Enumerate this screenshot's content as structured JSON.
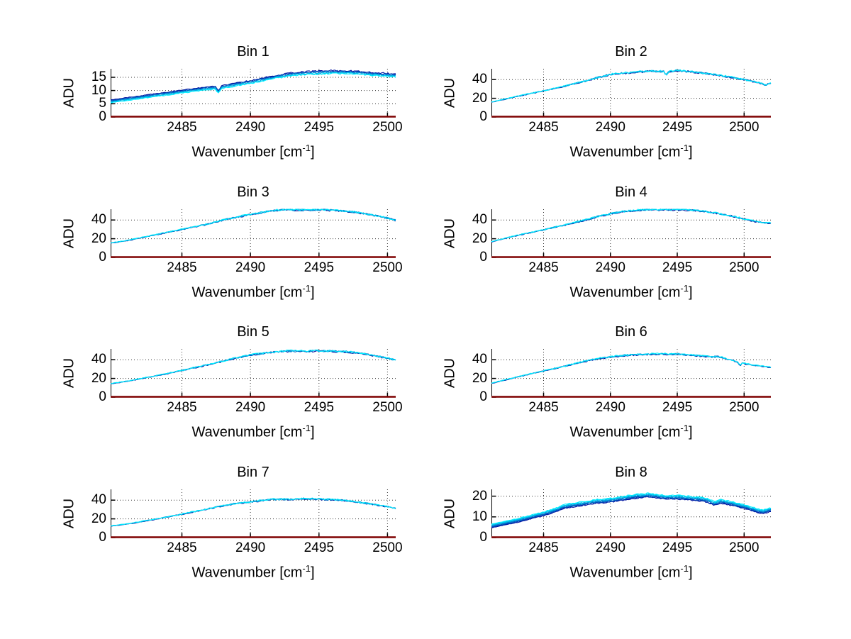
{
  "figure": {
    "background": "#ffffff"
  },
  "palette": {
    "trace_dark": "#000f9f",
    "trace_cyan": "#00eeff",
    "baseline": "#7f0000",
    "grid": "#333333",
    "axis": "#000000",
    "text": "#000000"
  },
  "chart_data": [
    {
      "type": "line",
      "title": "Bin 1",
      "ylabel": "ADU",
      "xlabel": {
        "pre": "Wavenumber [cm",
        "sup": "-1",
        "post": "]"
      },
      "xlim": [
        2479.8,
        2500.6
      ],
      "ylim": [
        0,
        18.2
      ],
      "x_ticks": [
        2485,
        2490,
        2495,
        2500
      ],
      "y_ticks": [
        0,
        5,
        10,
        15
      ],
      "grid": true,
      "legend": null,
      "traces": 6,
      "spread": 1.1,
      "noise": 0.3,
      "cyan_on_top": false,
      "baseline_y": 0,
      "points": [
        [
          2479.6,
          5.8
        ],
        [
          2481,
          6.8
        ],
        [
          2483,
          8.2
        ],
        [
          2485,
          9.6
        ],
        [
          2486,
          10.3
        ],
        [
          2487,
          10.9
        ],
        [
          2487.45,
          11.1
        ],
        [
          2487.65,
          9.4
        ],
        [
          2487.9,
          11.3
        ],
        [
          2489,
          12.3
        ],
        [
          2490,
          13.2
        ],
        [
          2491,
          14.3
        ],
        [
          2492,
          15.3
        ],
        [
          2493,
          16.1
        ],
        [
          2494,
          16.5
        ],
        [
          2495,
          16.8
        ],
        [
          2496,
          17.0
        ],
        [
          2497,
          16.9
        ],
        [
          2498,
          16.6
        ],
        [
          2499,
          16.2
        ],
        [
          2500,
          15.9
        ],
        [
          2501,
          15.6
        ],
        [
          2501.6,
          16.0
        ]
      ]
    },
    {
      "type": "line",
      "title": "Bin 2",
      "ylabel": "ADU",
      "xlabel": {
        "pre": "Wavenumber [cm",
        "sup": "-1",
        "post": "]"
      },
      "xlim": [
        2481.1,
        2502.0
      ],
      "ylim": [
        0,
        51.5
      ],
      "x_ticks": [
        2485,
        2490,
        2495,
        2500
      ],
      "y_ticks": [
        0,
        20,
        40
      ],
      "grid": true,
      "legend": null,
      "traces": 4,
      "spread": 0.4,
      "noise": 1.0,
      "cyan_on_top": true,
      "baseline_y": 0,
      "points": [
        [
          2479.6,
          13
        ],
        [
          2481,
          15.5
        ],
        [
          2483,
          22
        ],
        [
          2485,
          28
        ],
        [
          2486,
          31
        ],
        [
          2487,
          34.5
        ],
        [
          2488,
          38
        ],
        [
          2489,
          42
        ],
        [
          2490,
          45.5
        ],
        [
          2491,
          47
        ],
        [
          2492,
          48
        ],
        [
          2493,
          49
        ],
        [
          2494,
          48.5
        ],
        [
          2494.15,
          44
        ],
        [
          2494.35,
          48.5
        ],
        [
          2495,
          49.5
        ],
        [
          2496,
          48.5
        ],
        [
          2497,
          47
        ],
        [
          2498,
          45
        ],
        [
          2499,
          42.5
        ],
        [
          2500,
          40
        ],
        [
          2501,
          37
        ],
        [
          2501.4,
          35.5
        ],
        [
          2501.6,
          33.5
        ],
        [
          2501.8,
          35.5
        ],
        [
          2502,
          36
        ]
      ]
    },
    {
      "type": "line",
      "title": "Bin 3",
      "ylabel": "ADU",
      "xlabel": {
        "pre": "Wavenumber [cm",
        "sup": "-1",
        "post": "]"
      },
      "xlim": [
        2479.8,
        2500.6
      ],
      "ylim": [
        0,
        51.5
      ],
      "x_ticks": [
        2485,
        2490,
        2495,
        2500
      ],
      "y_ticks": [
        0,
        20,
        40
      ],
      "grid": true,
      "legend": null,
      "traces": 4,
      "spread": 0.4,
      "noise": 1.0,
      "cyan_on_top": true,
      "baseline_y": 0,
      "points": [
        [
          2479.6,
          15
        ],
        [
          2481,
          18
        ],
        [
          2483,
          24
        ],
        [
          2485,
          30
        ],
        [
          2487,
          36
        ],
        [
          2488,
          40
        ],
        [
          2489,
          43
        ],
        [
          2490,
          46
        ],
        [
          2491,
          48.5
        ],
        [
          2492,
          50.5
        ],
        [
          2493,
          51
        ],
        [
          2494,
          50.5
        ],
        [
          2495,
          51
        ],
        [
          2496,
          50.5
        ],
        [
          2497,
          49.5
        ],
        [
          2498,
          47.5
        ],
        [
          2499,
          45
        ],
        [
          2500,
          42
        ],
        [
          2501,
          38.5
        ],
        [
          2501.6,
          37
        ]
      ]
    },
    {
      "type": "line",
      "title": "Bin 4",
      "ylabel": "ADU",
      "xlabel": {
        "pre": "Wavenumber [cm",
        "sup": "-1",
        "post": "]"
      },
      "xlim": [
        2481.1,
        2502.0
      ],
      "ylim": [
        0,
        51.5
      ],
      "x_ticks": [
        2485,
        2490,
        2495,
        2500
      ],
      "y_ticks": [
        0,
        20,
        40
      ],
      "grid": true,
      "legend": null,
      "traces": 4,
      "spread": 0.4,
      "noise": 1.0,
      "cyan_on_top": true,
      "baseline_y": 0,
      "points": [
        [
          2479.6,
          14
        ],
        [
          2481,
          16.5
        ],
        [
          2483,
          23.5
        ],
        [
          2485,
          29.5
        ],
        [
          2487,
          36
        ],
        [
          2488,
          39.5
        ],
        [
          2489,
          43.5
        ],
        [
          2490,
          46.5
        ],
        [
          2491,
          49
        ],
        [
          2492,
          50.5
        ],
        [
          2493,
          51
        ],
        [
          2494,
          51
        ],
        [
          2495,
          51
        ],
        [
          2496,
          50.5
        ],
        [
          2497,
          49.5
        ],
        [
          2498,
          47
        ],
        [
          2499,
          44.5
        ],
        [
          2500,
          41
        ],
        [
          2501,
          38
        ],
        [
          2502,
          36.5
        ]
      ]
    },
    {
      "type": "line",
      "title": "Bin 5",
      "ylabel": "ADU",
      "xlabel": {
        "pre": "Wavenumber [cm",
        "sup": "-1",
        "post": "]"
      },
      "xlim": [
        2479.8,
        2500.6
      ],
      "ylim": [
        0,
        51.5
      ],
      "x_ticks": [
        2485,
        2490,
        2495,
        2500
      ],
      "y_ticks": [
        0,
        20,
        40
      ],
      "grid": true,
      "legend": null,
      "traces": 4,
      "spread": 0.4,
      "noise": 1.0,
      "cyan_on_top": true,
      "baseline_y": 0,
      "points": [
        [
          2479.6,
          14
        ],
        [
          2481,
          17
        ],
        [
          2483,
          22.5
        ],
        [
          2485,
          28.5
        ],
        [
          2487,
          35
        ],
        [
          2488,
          38.5
        ],
        [
          2489,
          42
        ],
        [
          2490,
          45
        ],
        [
          2491,
          47
        ],
        [
          2492,
          48.5
        ],
        [
          2493,
          49.5
        ],
        [
          2494,
          49
        ],
        [
          2495,
          49.5
        ],
        [
          2496,
          49
        ],
        [
          2497,
          48.5
        ],
        [
          2498,
          47
        ],
        [
          2499,
          44.5
        ],
        [
          2500,
          41.5
        ],
        [
          2501,
          38.5
        ],
        [
          2501.6,
          37
        ]
      ]
    },
    {
      "type": "line",
      "title": "Bin 6",
      "ylabel": "ADU",
      "xlabel": {
        "pre": "Wavenumber [cm",
        "sup": "-1",
        "post": "]"
      },
      "xlim": [
        2481.1,
        2502.0
      ],
      "ylim": [
        0,
        51.5
      ],
      "x_ticks": [
        2485,
        2490,
        2495,
        2500
      ],
      "y_ticks": [
        0,
        20,
        40
      ],
      "grid": true,
      "legend": null,
      "traces": 4,
      "spread": 0.4,
      "noise": 0.9,
      "cyan_on_top": true,
      "baseline_y": 0,
      "points": [
        [
          2479.6,
          12
        ],
        [
          2481,
          14.5
        ],
        [
          2483,
          21.5
        ],
        [
          2485,
          28
        ],
        [
          2487,
          34.5
        ],
        [
          2488,
          38
        ],
        [
          2489,
          41
        ],
        [
          2490,
          43
        ],
        [
          2491,
          44.5
        ],
        [
          2492,
          45.5
        ],
        [
          2493,
          46
        ],
        [
          2494,
          46
        ],
        [
          2495,
          46
        ],
        [
          2496,
          45
        ],
        [
          2497,
          44
        ],
        [
          2497.6,
          43
        ],
        [
          2498,
          43.5
        ],
        [
          2499,
          40
        ],
        [
          2499.5,
          38
        ],
        [
          2499.7,
          33.5
        ],
        [
          2499.9,
          37
        ],
        [
          2500,
          36
        ],
        [
          2501,
          33.5
        ],
        [
          2502,
          32
        ]
      ]
    },
    {
      "type": "line",
      "title": "Bin 7",
      "ylabel": "ADU",
      "xlabel": {
        "pre": "Wavenumber [cm",
        "sup": "-1",
        "post": "]"
      },
      "xlim": [
        2479.8,
        2500.6
      ],
      "ylim": [
        0,
        51.5
      ],
      "x_ticks": [
        2485,
        2490,
        2495,
        2500
      ],
      "y_ticks": [
        0,
        20,
        40
      ],
      "grid": true,
      "legend": null,
      "traces": 4,
      "spread": 0.4,
      "noise": 0.9,
      "cyan_on_top": true,
      "baseline_y": 0,
      "points": [
        [
          2479.6,
          12
        ],
        [
          2481,
          14.5
        ],
        [
          2483,
          19.5
        ],
        [
          2485,
          25
        ],
        [
          2486,
          28
        ],
        [
          2487,
          31
        ],
        [
          2488,
          34
        ],
        [
          2489,
          36.5
        ],
        [
          2490,
          38
        ],
        [
          2491,
          40
        ],
        [
          2492,
          41
        ],
        [
          2493,
          41
        ],
        [
          2494,
          41.5
        ],
        [
          2495,
          41
        ],
        [
          2496,
          40.5
        ],
        [
          2497,
          39.5
        ],
        [
          2498,
          37.5
        ],
        [
          2499,
          35.5
        ],
        [
          2500,
          33
        ],
        [
          2501,
          30
        ],
        [
          2501.6,
          28.5
        ]
      ]
    },
    {
      "type": "line",
      "title": "Bin 8",
      "ylabel": "ADU",
      "xlabel": {
        "pre": "Wavenumber [cm",
        "sup": "-1",
        "post": "]"
      },
      "xlim": [
        2481.1,
        2502.0
      ],
      "ylim": [
        0,
        23.3
      ],
      "x_ticks": [
        2485,
        2490,
        2495,
        2500
      ],
      "y_ticks": [
        0,
        10,
        20
      ],
      "grid": true,
      "legend": null,
      "traces": 8,
      "spread": 1.8,
      "noise": 0.35,
      "cyan_on_top": true,
      "baseline_y": 0,
      "points": [
        [
          2479.6,
          4.5
        ],
        [
          2481,
          5.5
        ],
        [
          2483,
          8.2
        ],
        [
          2485,
          11.5
        ],
        [
          2486,
          13.5
        ],
        [
          2486.5,
          15
        ],
        [
          2487,
          15.5
        ],
        [
          2488,
          16.5
        ],
        [
          2489,
          17.5
        ],
        [
          2490,
          18
        ],
        [
          2491,
          19
        ],
        [
          2492,
          20
        ],
        [
          2492.8,
          20.5
        ],
        [
          2493.5,
          20
        ],
        [
          2494,
          19.5
        ],
        [
          2495,
          19.5
        ],
        [
          2496,
          19
        ],
        [
          2497,
          18.5
        ],
        [
          2497.8,
          16.5
        ],
        [
          2498.3,
          17.5
        ],
        [
          2499,
          16.5
        ],
        [
          2500,
          15
        ],
        [
          2501,
          13
        ],
        [
          2501.4,
          12.5
        ],
        [
          2502,
          13.5
        ]
      ]
    }
  ]
}
